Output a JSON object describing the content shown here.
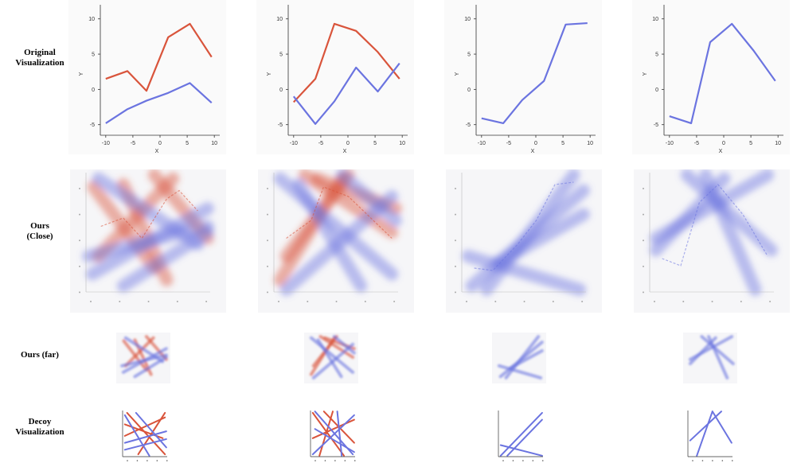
{
  "row_labels": {
    "original": [
      "Original",
      "Visualization"
    ],
    "close": [
      "Ours",
      "(Close)"
    ],
    "far": [
      "Ours (far)"
    ],
    "decoy": [
      "Decoy",
      "Visualization"
    ]
  },
  "colors": {
    "red": "#d9543b",
    "blue": "#6b74e0"
  },
  "chart_data": [
    {
      "type": "line",
      "xlabel": "X",
      "ylabel": "Y",
      "xlim": [
        -11,
        11
      ],
      "ylim": [
        -6.5,
        12
      ],
      "xticks": [
        -10,
        -5,
        0,
        5,
        10
      ],
      "yticks": [
        -5,
        0,
        5,
        10
      ],
      "series": [
        {
          "color": "red",
          "x": [
            -10,
            -6,
            -2.5,
            1.5,
            5.5,
            9.5
          ],
          "y": [
            1.5,
            2.6,
            -0.2,
            7.4,
            9.3,
            4.6
          ]
        },
        {
          "color": "blue",
          "x": [
            -10,
            -6,
            -2.5,
            1.5,
            5.5,
            9.5
          ],
          "y": [
            -4.8,
            -2.8,
            -1.6,
            -0.5,
            0.9,
            -1.9
          ]
        }
      ]
    },
    {
      "type": "line",
      "xlabel": "X",
      "ylabel": "Y",
      "xlim": [
        -11,
        11
      ],
      "ylim": [
        -6.5,
        12
      ],
      "xticks": [
        -10,
        -5,
        0,
        5,
        10
      ],
      "yticks": [
        -5,
        0,
        5,
        10
      ],
      "series": [
        {
          "color": "red",
          "x": [
            -10,
            -6,
            -2.5,
            1.5,
            5.5,
            9.5
          ],
          "y": [
            -1.8,
            1.5,
            9.3,
            8.3,
            5.3,
            1.5
          ]
        },
        {
          "color": "blue",
          "x": [
            -10,
            -6,
            -2.5,
            1.5,
            5.5,
            9.5
          ],
          "y": [
            -1,
            -4.9,
            -1.7,
            3.1,
            -0.3,
            3.7
          ]
        }
      ]
    },
    {
      "type": "line",
      "xlabel": "X",
      "ylabel": "Y",
      "xlim": [
        -11,
        11
      ],
      "ylim": [
        -6.5,
        12
      ],
      "xticks": [
        -10,
        -5,
        0,
        5,
        10
      ],
      "yticks": [
        -5,
        0,
        5,
        10
      ],
      "series": [
        {
          "color": "blue",
          "x": [
            -10,
            -6,
            -2.5,
            1.5,
            5.5,
            9.5
          ],
          "y": [
            -4.1,
            -4.8,
            -1.5,
            1.2,
            9.2,
            9.4
          ]
        }
      ]
    },
    {
      "type": "line",
      "xlabel": "X",
      "ylabel": "Y",
      "xlim": [
        -11,
        11
      ],
      "ylim": [
        -6.5,
        12
      ],
      "xticks": [
        -10,
        -5,
        0,
        5,
        10
      ],
      "yticks": [
        -5,
        0,
        5,
        10
      ],
      "series": [
        {
          "color": "blue",
          "x": [
            -10,
            -6,
            -2.5,
            1.5,
            5.5,
            9.5
          ],
          "y": [
            -3.8,
            -4.8,
            6.7,
            9.3,
            5.5,
            1.2
          ]
        }
      ]
    }
  ]
}
